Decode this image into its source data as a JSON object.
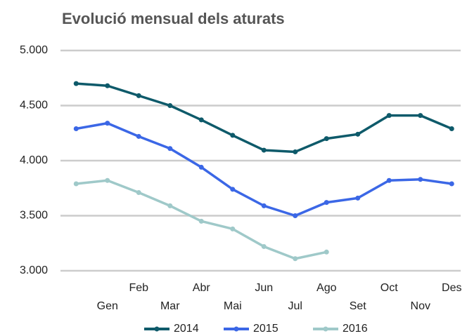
{
  "chart_data": {
    "type": "line",
    "title": "Evolució mensual dels aturats",
    "categories": [
      null,
      "Gen",
      "Feb",
      "Mar",
      "Abr",
      "Mai",
      "Jun",
      "Jul",
      "Ago",
      "Set",
      "Oct",
      "Nov",
      "Des"
    ],
    "series": [
      {
        "name": "2014",
        "color": "#0e5a6a",
        "values": [
          4700,
          4680,
          4590,
          4500,
          4370,
          4230,
          4095,
          4080,
          4200,
          4240,
          4410,
          4410,
          4290
        ]
      },
      {
        "name": "2015",
        "color": "#3b67e6",
        "values": [
          4290,
          4340,
          4220,
          4110,
          3940,
          3740,
          3590,
          3500,
          3620,
          3660,
          3820,
          3830,
          3790
        ]
      },
      {
        "name": "2016",
        "color": "#9fc9c9",
        "values": [
          3790,
          3820,
          3710,
          3590,
          3450,
          3380,
          3220,
          3110,
          3170,
          null,
          null,
          null,
          null
        ]
      }
    ],
    "ylim": [
      3000,
      5000
    ],
    "yticks": [
      {
        "value": 3000,
        "label": "3.000"
      },
      {
        "value": 3500,
        "label": "3.500"
      },
      {
        "value": 4000,
        "label": "4.000"
      },
      {
        "value": 4500,
        "label": "4.500"
      },
      {
        "value": 5000,
        "label": "5.000"
      }
    ],
    "grid": true,
    "legend": "bottom"
  }
}
